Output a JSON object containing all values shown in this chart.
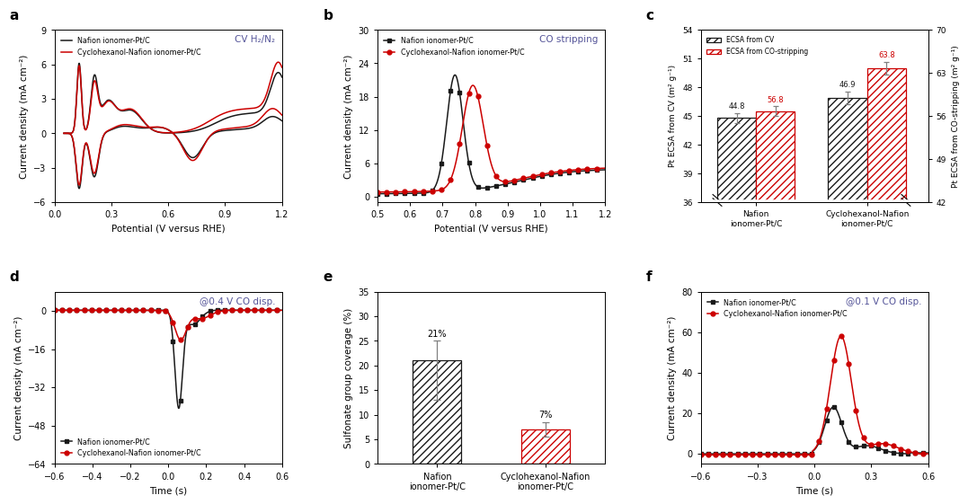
{
  "panel_a": {
    "title": "CV H₂/N₂",
    "xlabel": "Potential (V versus RHE)",
    "ylabel": "Current density (mA cm⁻²)",
    "xlim": [
      0.05,
      1.2
    ],
    "ylim": [
      -6,
      9
    ],
    "yticks": [
      -6,
      -3,
      0,
      3,
      6,
      9
    ],
    "xticks": [
      0,
      0.3,
      0.6,
      0.9,
      1.2
    ]
  },
  "panel_b": {
    "title": "CO stripping",
    "xlabel": "Potential (V versus RHE)",
    "ylabel": "Current density (mA cm⁻²)",
    "xlim": [
      0.5,
      1.2
    ],
    "ylim": [
      -1,
      30
    ],
    "yticks": [
      0,
      6,
      12,
      18,
      24,
      30
    ],
    "xticks": [
      0.5,
      0.6,
      0.7,
      0.8,
      0.9,
      1.0,
      1.1,
      1.2
    ]
  },
  "panel_c": {
    "ylabel_left": "Pt ECSA from CV (m² g⁻¹)",
    "ylabel_right": "Pt ECSA from CO-stripping (m² g⁻¹)",
    "ylim_left": [
      36,
      54
    ],
    "ylim_right": [
      42,
      70
    ],
    "yticks_left": [
      36,
      39,
      42,
      45,
      48,
      51,
      54
    ],
    "yticks_right": [
      42,
      49,
      56,
      63,
      70
    ],
    "categories": [
      "Nafion\nionomer-Pt/C",
      "Cyclohexanol-Nafion\nionomer-Pt/C"
    ],
    "cv_values": [
      44.8,
      46.9
    ],
    "co_values": [
      56.8,
      63.8
    ],
    "cv_errors": [
      0.5,
      0.7
    ],
    "co_errors": [
      0.8,
      1.0
    ],
    "legend_cv": "ECSA from CV",
    "legend_co": "ECSA from CO-stripping"
  },
  "panel_d": {
    "annotation": "@0.4 V CO disp.",
    "xlabel": "Time (s)",
    "ylabel": "Current density (mA cm⁻²)",
    "xlim": [
      -0.6,
      0.6
    ],
    "ylim": [
      -64,
      8
    ],
    "yticks": [
      -64,
      -48,
      -32,
      -16,
      0
    ],
    "xticks": [
      -0.6,
      -0.4,
      -0.2,
      0,
      0.2,
      0.4,
      0.6
    ]
  },
  "panel_e": {
    "ylabel": "Sulfonate group coverage (%)",
    "ylim": [
      0,
      35
    ],
    "yticks": [
      0,
      5,
      10,
      15,
      20,
      25,
      30,
      35
    ],
    "categories": [
      "Nafion\nionomer-Pt/C",
      "Cyclohexanol-Nafion\nionomer-Pt/C"
    ],
    "values": [
      21,
      7
    ],
    "errors_up": [
      4,
      1.5
    ],
    "errors_down": [
      8,
      1.5
    ],
    "labels": [
      "21%",
      "7%"
    ]
  },
  "panel_f": {
    "annotation": "@0.1 V CO disp.",
    "xlabel": "Time (s)",
    "ylabel": "Current density (mA cm⁻²)",
    "xlim": [
      -0.6,
      0.6
    ],
    "ylim": [
      -5,
      80
    ],
    "yticks": [
      0,
      20,
      40,
      60,
      80
    ],
    "xticks": [
      -0.6,
      -0.3,
      0,
      0.3,
      0.6
    ]
  },
  "colors": {
    "black": "#1a1a1a",
    "red": "#cc0000"
  },
  "legend_nafion": "Nafion ionomer-Pt/C",
  "legend_cyclo": "Cyclohexanol-Nafion ionomer-Pt/C"
}
